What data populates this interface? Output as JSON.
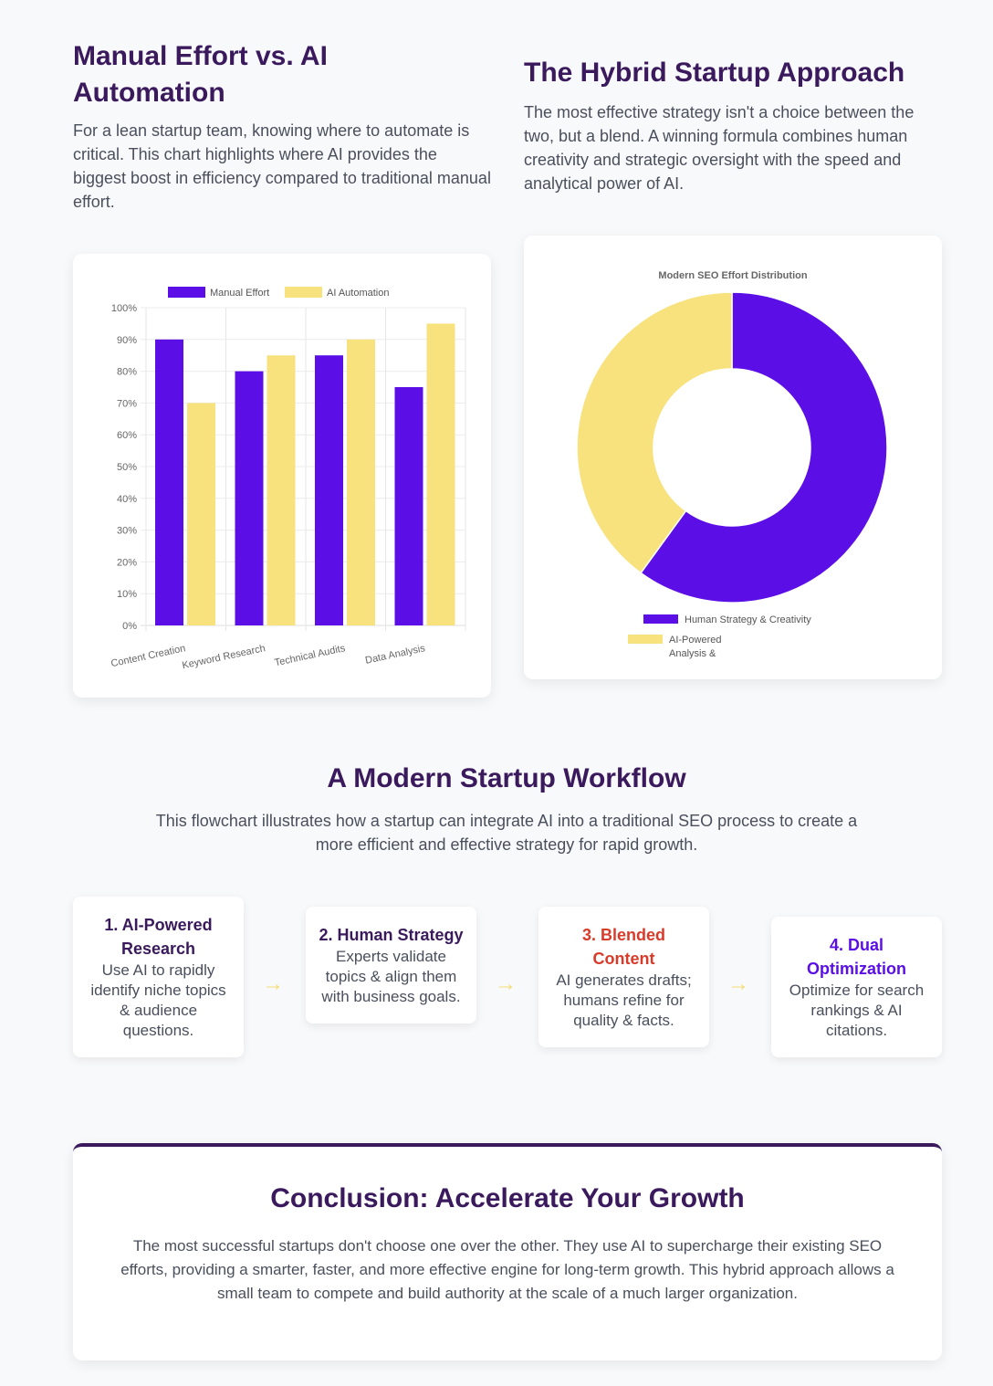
{
  "left": {
    "title": "Manual Effort vs. AI Automation",
    "text": "For a lean startup team, knowing where to automate is critical. This chart highlights where AI provides the biggest boost in efficiency compared to traditional manual effort."
  },
  "right": {
    "title": "The Hybrid Startup Approach",
    "text": "The most effective strategy isn't a choice between the two, but a blend. A winning formula combines human creativity and strategic oversight with the speed and analytical power of AI."
  },
  "colors": {
    "purple": "#5b0ee6",
    "yellow": "#f7e27e",
    "heading": "#3a1a5c",
    "red": "#d93b2b",
    "accent": "#5b0ee6"
  },
  "chart_data": [
    {
      "type": "bar",
      "categories": [
        "Content Creation",
        "Keyword Research",
        "Technical Audits",
        "Data Analysis"
      ],
      "series": [
        {
          "name": "Manual Effort",
          "values": [
            90,
            80,
            85,
            75
          ]
        },
        {
          "name": "AI Automation",
          "values": [
            70,
            85,
            90,
            95
          ]
        }
      ],
      "ylim": [
        0,
        100
      ],
      "yticks": [
        "0%",
        "10%",
        "20%",
        "30%",
        "40%",
        "50%",
        "60%",
        "70%",
        "80%",
        "90%",
        "100%"
      ],
      "legend": "top",
      "grid": true
    },
    {
      "type": "pie",
      "title": "Modern SEO Effort Distribution",
      "labels": [
        "Human Strategy & Creativity",
        "AI-Powered Analysis &"
      ],
      "values": [
        60,
        40
      ],
      "legend": "bottom"
    }
  ],
  "workflow": {
    "title": "A Modern Startup Workflow",
    "text": "This flowchart illustrates how a startup can integrate AI into a traditional SEO process to create a more efficient and effective strategy for rapid growth.",
    "arrow": "→",
    "steps": [
      {
        "title": "1. AI-Powered Research",
        "text": "Use AI to rapidly identify niche topics & audience questions."
      },
      {
        "title": "2. Human Strategy",
        "text": "Experts validate topics & align them with business goals."
      },
      {
        "title": "3. Blended Content",
        "text": "AI generates drafts; humans refine for quality & facts."
      },
      {
        "title": "4. Dual Optimization",
        "text": "Optimize for search rankings & AI citations."
      }
    ]
  },
  "conclusion": {
    "title": "Conclusion: Accelerate Your Growth",
    "text": "The most successful startups don't choose one over the other. They use AI to supercharge their existing SEO efforts, providing a smarter, faster, and more effective engine for long-term growth. This hybrid approach allows a small team to compete and build authority at the scale of a much larger organization."
  }
}
